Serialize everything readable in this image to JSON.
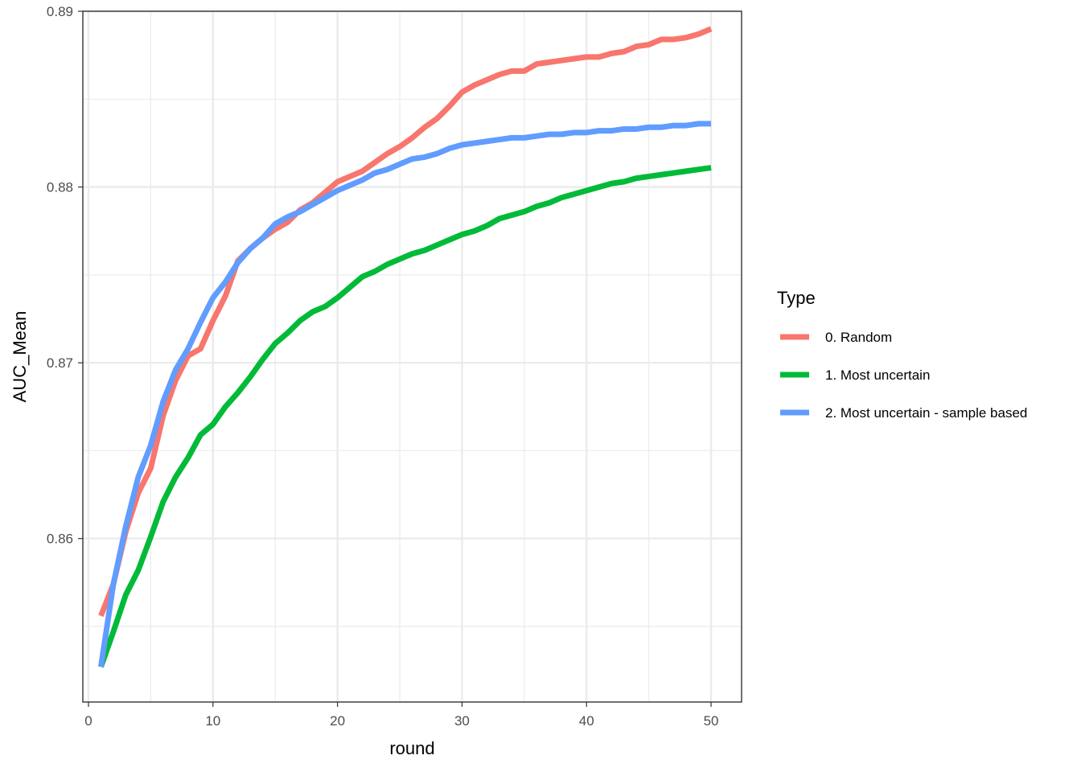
{
  "chart_data": {
    "type": "line",
    "title": "",
    "xlabel": "round",
    "ylabel": "AUC_Mean",
    "xlim": [
      -0.45,
      52.45
    ],
    "ylim": [
      0.8507,
      0.89
    ],
    "x_ticks": [
      0,
      10,
      20,
      30,
      40,
      50
    ],
    "x_tick_labels": [
      "0",
      "10",
      "20",
      "30",
      "40",
      "50"
    ],
    "y_ticks": [
      0.86,
      0.87,
      0.88,
      0.89
    ],
    "y_tick_labels": [
      "0.86",
      "0.87",
      "0.88",
      "0.89"
    ],
    "y_minor_ticks": [
      0.855,
      0.865,
      0.875,
      0.885
    ],
    "x_minor_ticks": [
      5,
      15,
      25,
      35,
      45
    ],
    "grid": true,
    "legend_title": "Type",
    "legend_position": "right",
    "x": [
      1,
      2,
      3,
      4,
      5,
      6,
      7,
      8,
      9,
      10,
      11,
      12,
      13,
      14,
      15,
      16,
      17,
      18,
      19,
      20,
      21,
      22,
      23,
      24,
      25,
      26,
      27,
      28,
      29,
      30,
      31,
      32,
      33,
      34,
      35,
      36,
      37,
      38,
      39,
      40,
      41,
      42,
      43,
      44,
      45,
      46,
      47,
      48,
      49,
      50
    ],
    "series": [
      {
        "name": "0. Random",
        "color": "#F8766D",
        "values": [
          0.8556,
          0.8574,
          0.8604,
          0.8626,
          0.864,
          0.867,
          0.869,
          0.8704,
          0.8708,
          0.8724,
          0.8738,
          0.8758,
          0.8765,
          0.8771,
          0.8776,
          0.878,
          0.8787,
          0.8791,
          0.8797,
          0.8803,
          0.8806,
          0.8809,
          0.8814,
          0.8819,
          0.8823,
          0.8828,
          0.8834,
          0.8839,
          0.8846,
          0.8854,
          0.8858,
          0.8861,
          0.8864,
          0.8866,
          0.8866,
          0.887,
          0.8871,
          0.8872,
          0.8873,
          0.8874,
          0.8874,
          0.8876,
          0.8877,
          0.888,
          0.8881,
          0.8884,
          0.8884,
          0.8885,
          0.8887,
          0.889
        ]
      },
      {
        "name": "1. Most uncertain",
        "color": "#00BA38",
        "values": [
          0.8527,
          0.8547,
          0.8568,
          0.8582,
          0.8601,
          0.8621,
          0.8635,
          0.8646,
          0.8659,
          0.8665,
          0.8675,
          0.8683,
          0.8692,
          0.8702,
          0.8711,
          0.8717,
          0.8724,
          0.8729,
          0.8732,
          0.8737,
          0.8743,
          0.8749,
          0.8752,
          0.8756,
          0.8759,
          0.8762,
          0.8764,
          0.8767,
          0.877,
          0.8773,
          0.8775,
          0.8778,
          0.8782,
          0.8784,
          0.8786,
          0.8789,
          0.8791,
          0.8794,
          0.8796,
          0.8798,
          0.88,
          0.8802,
          0.8803,
          0.8805,
          0.8806,
          0.8807,
          0.8808,
          0.8809,
          0.881,
          0.8811
        ]
      },
      {
        "name": "2. Most uncertain - sample based",
        "color": "#619CFF",
        "values": [
          0.8527,
          0.8574,
          0.8607,
          0.8635,
          0.8653,
          0.8678,
          0.8696,
          0.8708,
          0.8723,
          0.8737,
          0.8746,
          0.8757,
          0.8765,
          0.8771,
          0.8779,
          0.8783,
          0.8786,
          0.879,
          0.8794,
          0.8798,
          0.8801,
          0.8804,
          0.8808,
          0.881,
          0.8813,
          0.8816,
          0.8817,
          0.8819,
          0.8822,
          0.8824,
          0.8825,
          0.8826,
          0.8827,
          0.8828,
          0.8828,
          0.8829,
          0.883,
          0.883,
          0.8831,
          0.8831,
          0.8832,
          0.8832,
          0.8833,
          0.8833,
          0.8834,
          0.8834,
          0.8835,
          0.8835,
          0.8836,
          0.8836
        ]
      }
    ]
  }
}
